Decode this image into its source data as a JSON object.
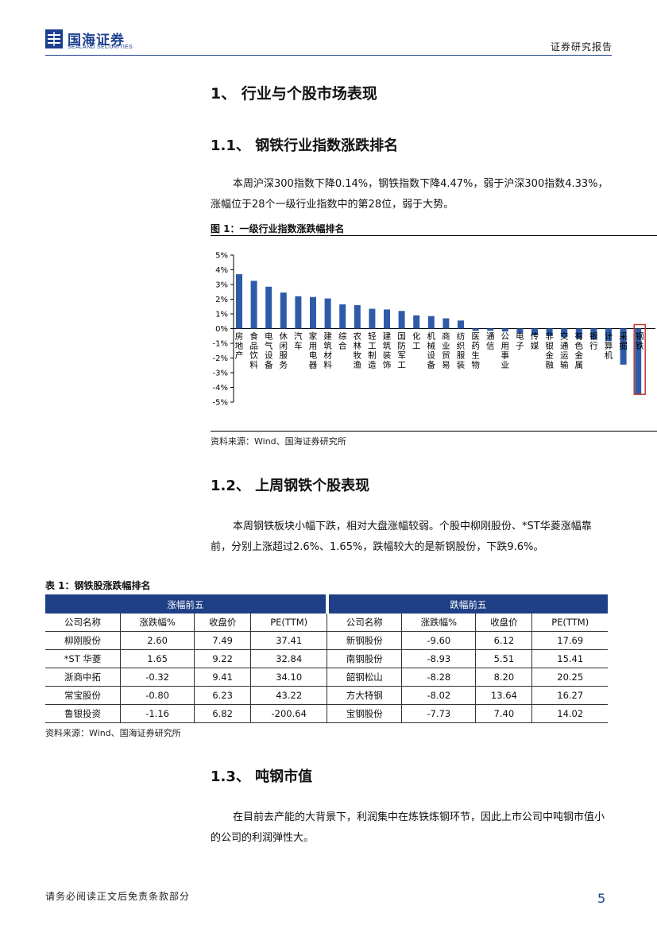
{
  "header": {
    "logo_cn": "国海证券",
    "logo_en": "SEALAND SECURITIES",
    "report_type": "证券研究报告"
  },
  "section1": {
    "title": "1、 行业与个股市场表现"
  },
  "section1_1": {
    "title": "1.1、 钢铁行业指数涨跌排名",
    "paragraph": "本周沪深300指数下降0.14%，钢铁指数下降4.47%，弱于沪深300指数4.33%，涨幅位于28个一级行业指数中的第28位，弱于大势。"
  },
  "figure1": {
    "caption": "图 1：一级行业指数涨跌幅排名",
    "source": "资料来源：Wind、国海证券研究所"
  },
  "chart_data": {
    "type": "bar",
    "categories": [
      "房地产",
      "食品饮料",
      "电气设备",
      "休闲服务",
      "汽车",
      "家用电器",
      "建筑材料",
      "综合",
      "农林牧渔",
      "轻工制造",
      "建筑装饰",
      "国防军工",
      "化工",
      "机械设备",
      "商业贸易",
      "纺织服装",
      "医药生物",
      "通信",
      "公用事业",
      "电子",
      "传媒",
      "非银金融",
      "交通运输",
      "有色金属",
      "银行",
      "计算机",
      "采掘",
      "钢铁"
    ],
    "values": [
      3.7,
      3.25,
      2.85,
      2.45,
      2.2,
      2.15,
      2.05,
      1.65,
      1.6,
      1.35,
      1.3,
      1.2,
      0.9,
      0.85,
      0.7,
      0.55,
      -0.15,
      -0.15,
      -0.2,
      -0.3,
      -0.45,
      -0.5,
      -0.6,
      -0.7,
      -0.75,
      -0.85,
      -2.45,
      -4.47
    ],
    "ylim": [
      -5,
      5
    ],
    "yticks": [
      "5%",
      "4%",
      "3%",
      "2%",
      "1%",
      "0%",
      "-1%",
      "-2%",
      "-3%",
      "-4%",
      "-5%"
    ],
    "bar_color": "#2e5ba8",
    "highlight_category": "钢铁",
    "highlight_color": "#c0392b",
    "grid": false,
    "legend": "none"
  },
  "section1_2": {
    "title": "1.2、 上周钢铁个股表现",
    "paragraph": "本周钢铁板块小幅下跌，相对大盘涨幅较弱。个股中柳刚股份、*ST华菱涨幅靠前，分别上涨超过2.6%、1.65%，跌幅较大的是新钢股份，下跌9.6%。"
  },
  "table1": {
    "caption": "表 1：钢铁股涨跌幅排名",
    "group_left": "涨幅前五",
    "group_right": "跌幅前五",
    "headers_left": [
      "公司名称",
      "涨跌幅%",
      "收盘价",
      "PE(TTM)"
    ],
    "headers_right": [
      "公司名称",
      "涨跌幅%",
      "收盘价",
      "PE(TTM)"
    ],
    "rows": [
      [
        "柳刚股份",
        "2.60",
        "7.49",
        "37.41",
        "新钢股份",
        "-9.60",
        "6.12",
        "17.69"
      ],
      [
        "*ST 华菱",
        "1.65",
        "9.22",
        "32.84",
        "南钢股份",
        "-8.93",
        "5.51",
        "15.41"
      ],
      [
        "浙商中拓",
        "-0.32",
        "9.41",
        "34.10",
        "韶钢松山",
        "-8.28",
        "8.20",
        "20.25"
      ],
      [
        "常宝股份",
        "-0.80",
        "6.23",
        "43.22",
        "方大特钢",
        "-8.02",
        "13.64",
        "16.27"
      ],
      [
        "鲁银投资",
        "-1.16",
        "6.82",
        "-200.64",
        "宝钢股份",
        "-7.73",
        "7.40",
        "14.02"
      ]
    ],
    "source": "资料来源：Wind、国海证券研究所"
  },
  "section1_3": {
    "title": "1.3、 吨钢市值",
    "paragraph": "在目前去产能的大背景下，利润集中在炼铁炼钢环节，因此上市公司中吨钢市值小的公司的利润弹性大。"
  },
  "footer": {
    "disclaimer": "请务必阅读正文后免责条款部分",
    "page_number": "5"
  }
}
